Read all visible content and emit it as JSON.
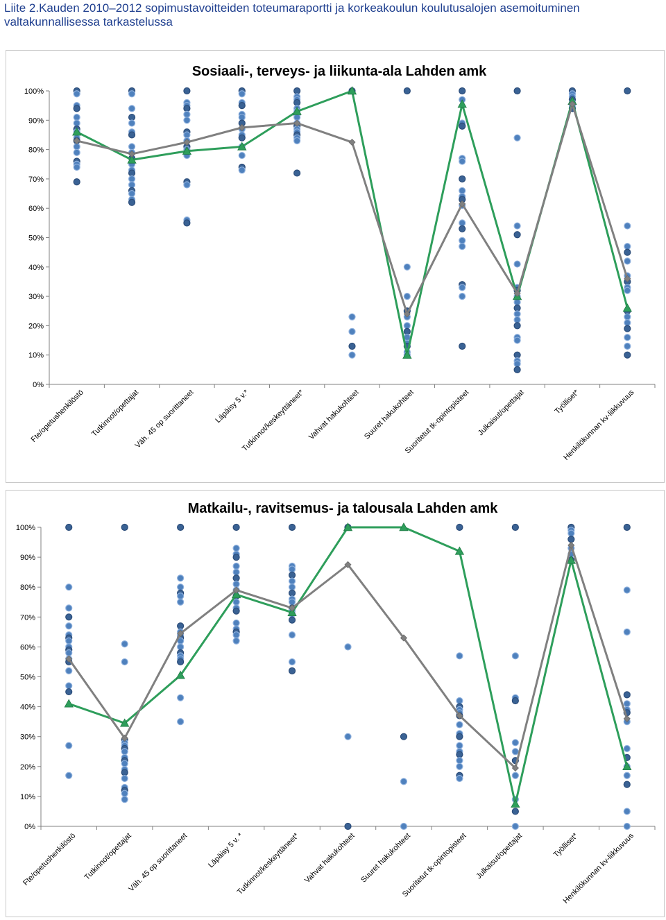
{
  "page": {
    "title": "Liite 2.Kauden 2010–2012 sopimustavoitteiden toteumaraportti ja korkeakoulun koulutusalojen asemoituminen valtakunnallisessa tarkastelussa"
  },
  "colors": {
    "scatter_fill": "#4f81bd",
    "scatter_fill_dark": "#3a6294",
    "scatter_edge": "#2c4d7a",
    "green_series": "#2e9e5b",
    "gray_series": "#808080",
    "axis": "#808080"
  },
  "chart_data": [
    {
      "type": "scatter",
      "title": "Sosiaali-, terveys- ja liikunta-ala Lahden amk",
      "ylim": [
        0,
        1
      ],
      "yticks": [
        "0%",
        "10%",
        "20%",
        "30%",
        "40%",
        "50%",
        "60%",
        "70%",
        "80%",
        "90%",
        "100%"
      ],
      "grid": false,
      "categories": [
        "Fte/opetushenkilöstö",
        "Tutkinnot/opettajat",
        "Väh. 45 op suorittaneet",
        "Läpäisy 5 v.*",
        "Tutkinnot/keskeyttäneet*",
        "Vahvat hakukohteet",
        "Suuret hakukohteet",
        "Suoritetut tk-opintopisteet",
        "Julkaisut/opettajat",
        "Työlliset*",
        "Henkilökunnan kv-liikkuvuus"
      ],
      "scatter": [
        [
          1.0,
          0.99,
          0.95,
          0.94,
          0.91,
          0.89,
          0.87,
          0.86,
          0.84,
          0.83,
          0.81,
          0.79,
          0.76,
          0.75,
          0.74,
          0.69
        ],
        [
          1.0,
          0.99,
          0.94,
          0.91,
          0.89,
          0.86,
          0.85,
          0.81,
          0.79,
          0.77,
          0.75,
          0.73,
          0.72,
          0.7,
          0.68,
          0.66,
          0.65,
          0.63,
          0.62
        ],
        [
          1.0,
          0.96,
          0.95,
          0.94,
          0.92,
          0.9,
          0.86,
          0.85,
          0.83,
          0.81,
          0.8,
          0.78,
          0.69,
          0.68,
          0.56,
          0.55
        ],
        [
          1.0,
          0.99,
          0.96,
          0.95,
          0.92,
          0.91,
          0.89,
          0.87,
          0.85,
          0.84,
          0.81,
          0.78,
          0.74,
          0.73
        ],
        [
          1.0,
          0.98,
          0.97,
          0.96,
          0.94,
          0.93,
          0.92,
          0.91,
          0.89,
          0.88,
          0.87,
          0.86,
          0.85,
          0.84,
          0.83,
          0.72
        ],
        [
          1.0,
          0.23,
          0.18,
          0.13,
          0.1
        ],
        [
          1.0,
          0.4,
          0.3,
          0.25,
          0.23,
          0.2,
          0.18,
          0.16,
          0.14,
          0.13,
          0.11,
          0.1
        ],
        [
          1.0,
          0.97,
          0.89,
          0.88,
          0.77,
          0.76,
          0.7,
          0.66,
          0.64,
          0.63,
          0.61,
          0.55,
          0.53,
          0.49,
          0.47,
          0.34,
          0.33,
          0.3,
          0.13
        ],
        [
          1.0,
          0.84,
          0.54,
          0.51,
          0.41,
          0.33,
          0.32,
          0.3,
          0.28,
          0.26,
          0.24,
          0.22,
          0.2,
          0.16,
          0.15,
          0.1,
          0.08,
          0.07,
          0.05
        ],
        [
          1.0,
          0.99,
          0.98,
          0.97,
          0.96,
          0.95,
          0.94
        ],
        [
          1.0,
          0.54,
          0.47,
          0.45,
          0.42,
          0.37,
          0.35,
          0.33,
          0.32,
          0.25,
          0.23,
          0.21,
          0.19,
          0.16,
          0.13,
          0.1
        ]
      ],
      "series": [
        {
          "marker": "triangle",
          "color": "#2e9e5b",
          "values": [
            0.86,
            0.765,
            0.795,
            0.81,
            0.93,
            1.0,
            0.1,
            0.955,
            0.3,
            0.965,
            0.26
          ]
        },
        {
          "marker": "diamond",
          "color": "#808080",
          "values": [
            0.83,
            0.785,
            0.825,
            0.875,
            0.89,
            0.825,
            0.24,
            0.615,
            0.31,
            0.955,
            0.36
          ]
        }
      ]
    },
    {
      "type": "scatter",
      "title": "Matkailu-, ravitsemus- ja talousala Lahden amk",
      "ylim": [
        0,
        1
      ],
      "yticks": [
        "0%",
        "10%",
        "20%",
        "30%",
        "40%",
        "50%",
        "60%",
        "70%",
        "80%",
        "90%",
        "100%"
      ],
      "grid": false,
      "categories": [
        "Fte/opetushenkilöstö",
        "Tutkinnot/opettajat",
        "Väh. 45 op suorittaneet",
        "Läpäisy 5 v. *",
        "Tutkinnot/keskeyttäneet*",
        "Vahvat hakukohteet",
        "Suuret hakukohteet",
        "Suoritetut tk-opintopisteet",
        "Julkaisut/opettajat",
        "Työlliset*",
        "Henkilökunnan kv-liikkuvuus"
      ],
      "scatter": [
        [
          1.0,
          0.8,
          0.73,
          0.7,
          0.67,
          0.64,
          0.63,
          0.62,
          0.6,
          0.59,
          0.58,
          0.56,
          0.55,
          0.52,
          0.47,
          0.45,
          0.27,
          0.17
        ],
        [
          1.0,
          0.61,
          0.55,
          0.29,
          0.28,
          0.27,
          0.26,
          0.25,
          0.23,
          0.22,
          0.21,
          0.19,
          0.18,
          0.16,
          0.13,
          0.12,
          0.11,
          0.09
        ],
        [
          1.0,
          0.83,
          0.8,
          0.78,
          0.77,
          0.75,
          0.67,
          0.65,
          0.64,
          0.63,
          0.62,
          0.6,
          0.58,
          0.57,
          0.56,
          0.55,
          0.43,
          0.35
        ],
        [
          1.0,
          0.93,
          0.91,
          0.9,
          0.87,
          0.85,
          0.83,
          0.81,
          0.79,
          0.77,
          0.75,
          0.73,
          0.72,
          0.68,
          0.66,
          0.65,
          0.64,
          0.62
        ],
        [
          1.0,
          0.87,
          0.86,
          0.84,
          0.82,
          0.8,
          0.78,
          0.76,
          0.75,
          0.73,
          0.72,
          0.71,
          0.69,
          0.64,
          0.55,
          0.52
        ],
        [
          1.0,
          0.6,
          0.3,
          0.0
        ],
        [
          0.3,
          0.15,
          0.0
        ],
        [
          1.0,
          0.57,
          0.42,
          0.4,
          0.39,
          0.38,
          0.37,
          0.34,
          0.31,
          0.3,
          0.27,
          0.25,
          0.24,
          0.22,
          0.2,
          0.17,
          0.16
        ],
        [
          1.0,
          0.57,
          0.43,
          0.42,
          0.28,
          0.25,
          0.22,
          0.17,
          0.09,
          0.05,
          0.0
        ],
        [
          1.0,
          0.99,
          0.98,
          0.96,
          0.93,
          0.91,
          0.89
        ],
        [
          1.0,
          0.79,
          0.65,
          0.44,
          0.41,
          0.39,
          0.38,
          0.35,
          0.26,
          0.23,
          0.2,
          0.17,
          0.14,
          0.05,
          0.0
        ]
      ],
      "series": [
        {
          "marker": "triangle",
          "color": "#2e9e5b",
          "values": [
            0.41,
            0.345,
            0.505,
            0.775,
            0.715,
            1.0,
            1.0,
            0.92,
            0.075,
            0.89,
            0.2
          ]
        },
        {
          "marker": "diamond",
          "color": "#808080",
          "values": [
            0.56,
            0.295,
            0.645,
            0.79,
            0.73,
            0.875,
            0.63,
            0.37,
            0.195,
            0.94,
            0.36
          ]
        }
      ]
    }
  ]
}
